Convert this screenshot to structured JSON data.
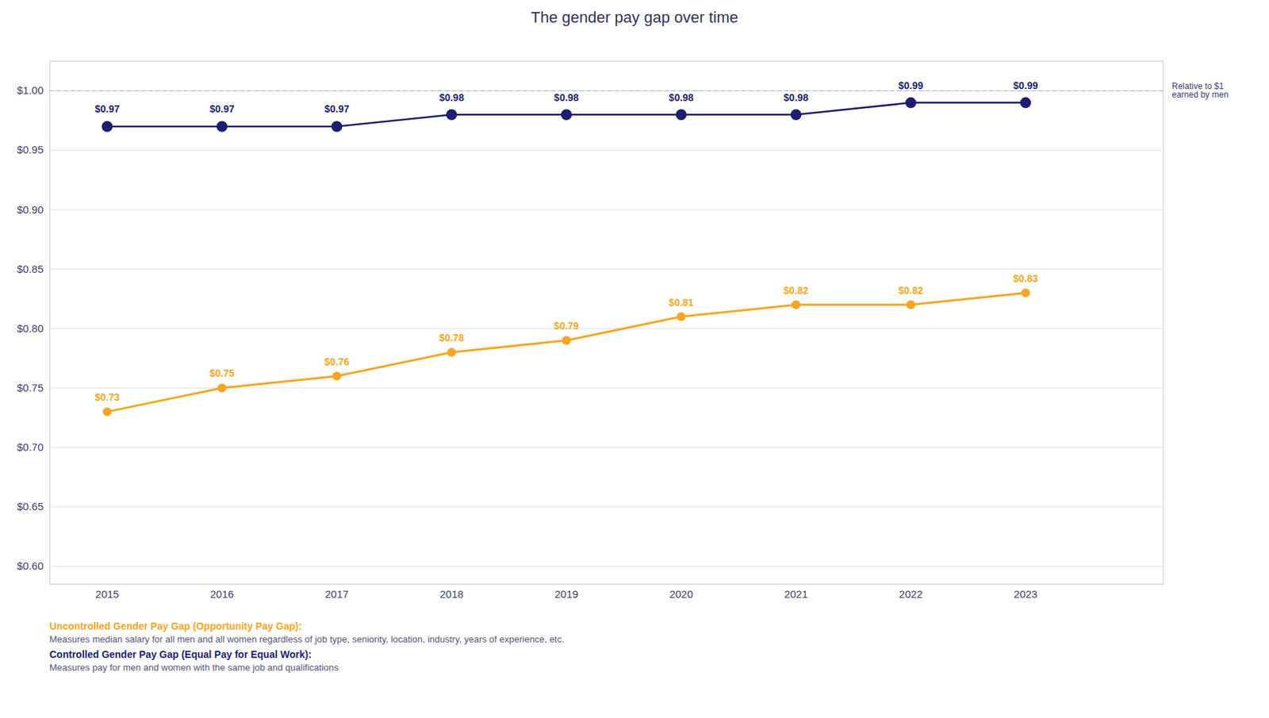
{
  "chart_data": {
    "type": "line",
    "title": "The gender pay gap over time",
    "x": [
      2015,
      2016,
      2017,
      2018,
      2019,
      2020,
      2021,
      2022,
      2023
    ],
    "series": [
      {
        "name": "Controlled Gender Pay Gap (Equal Pay for Equal Work):",
        "description": "Measures pay for men and women with the same job and qualifications",
        "color": "#1e1e6e",
        "marker": "circle",
        "line_style": "solid",
        "values": [
          0.97,
          0.97,
          0.97,
          0.98,
          0.98,
          0.98,
          0.98,
          0.99,
          0.99
        ],
        "value_labels": [
          "$0.97",
          "$0.97",
          "$0.97",
          "$0.98",
          "$0.98",
          "$0.98",
          "$0.98",
          "$0.99",
          "$0.99"
        ]
      },
      {
        "name": "Uncontrolled Gender Pay Gap (Opportunity Pay Gap):",
        "description": "Measures median salary for all men and all women regardless of job type, seniority, location, industry, years of experience, etc.",
        "color": "#f5a623",
        "marker": "circle",
        "line_style": "solid",
        "values": [
          0.73,
          0.75,
          0.76,
          0.78,
          0.79,
          0.81,
          0.82,
          0.82,
          0.83
        ],
        "value_labels": [
          "$0.73",
          "$0.75",
          "$0.76",
          "$0.78",
          "$0.79",
          "$0.81",
          "$0.82",
          "$0.82",
          "$0.83"
        ]
      }
    ],
    "xlim": [
      2014.5,
      2024.2
    ],
    "xticks": [
      2015,
      2016,
      2017,
      2018,
      2019,
      2020,
      2021,
      2022,
      2023
    ],
    "ylim": [
      0.585,
      1.025
    ],
    "yticks": [
      {
        "value": 0.6,
        "label": "$0.60"
      },
      {
        "value": 0.65,
        "label": "$0.65"
      },
      {
        "value": 0.7,
        "label": "$0.70"
      },
      {
        "value": 0.75,
        "label": "$0.75"
      },
      {
        "value": 0.8,
        "label": "$0.80"
      },
      {
        "value": 0.85,
        "label": "$0.85"
      },
      {
        "value": 0.9,
        "label": "$0.90"
      },
      {
        "value": 0.95,
        "label": "$0.95"
      },
      {
        "value": 1.0,
        "label": "$1.00"
      }
    ],
    "grid": "y",
    "data_labels": true,
    "reference_line": {
      "y": 1.0,
      "line_style": "dashed",
      "color": "#aaaaaa"
    },
    "annotation": "Relative to $1\nearned by men"
  }
}
